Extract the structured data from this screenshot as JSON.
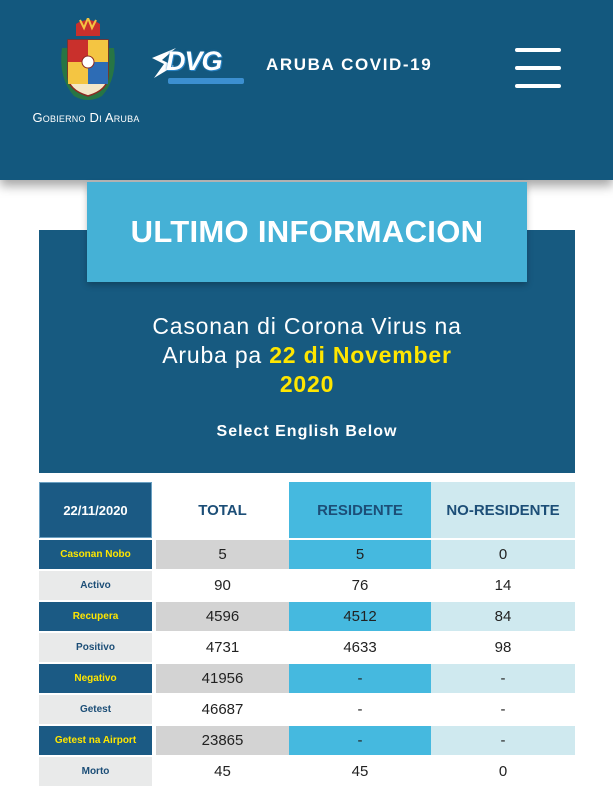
{
  "header": {
    "govt_logo_text": "Gobierno Di Aruba",
    "dvg_logo_text": "DVG",
    "title": "ARUBA COVID-19"
  },
  "info": {
    "banner": "ULTIMO INFORMACION",
    "subtitle_line1": "Casonan di Corona Virus na",
    "subtitle_line2_prefix": "Aruba pa ",
    "subtitle_date_1": "22 di November",
    "subtitle_date_2": "2020",
    "english_link": "Select English Below"
  },
  "table": {
    "date": "22/11/2020",
    "columns": [
      "TOTAL",
      "RESIDENTE",
      "NO-RESIDENTE"
    ],
    "rows": [
      {
        "label": "Casonan Nobo",
        "total": "5",
        "residente": "5",
        "no_residente": "0"
      },
      {
        "label": "Activo",
        "total": "90",
        "residente": "76",
        "no_residente": "14"
      },
      {
        "label": "Recupera",
        "total": "4596",
        "residente": "4512",
        "no_residente": "84"
      },
      {
        "label": "Positivo",
        "total": "4731",
        "residente": "4633",
        "no_residente": "98"
      },
      {
        "label": "Negativo",
        "total": "41956",
        "residente": "-",
        "no_residente": "-"
      },
      {
        "label": "Getest",
        "total": "46687",
        "residente": "-",
        "no_residente": "-"
      },
      {
        "label": "Getest na Airport",
        "total": "23865",
        "residente": "-",
        "no_residente": "-"
      },
      {
        "label": "Morto",
        "total": "45",
        "residente": "45",
        "no_residente": "0"
      }
    ]
  },
  "colors": {
    "header_bg": "#13587e",
    "banner_bg": "#45b1d6",
    "date_highlight": "#ffe600",
    "label_dark": "#1b5a84",
    "label_light": "#e9eaea",
    "label_text_dark": "#ffe600",
    "label_text_light": "#1c4e77",
    "total_dark": "#d3d3d3",
    "total_light": "#ffffff",
    "residente_dark": "#45b9df",
    "residente_light": "#ffffff",
    "noresidente_dark": "#cfe9ef",
    "noresidente_light": "#ffffff",
    "header_date_bg": "#1b5a84",
    "header_residente_bg": "#45b9df",
    "header_noresidente_bg": "#cfe9ef",
    "header_total_bg": "#ffffff"
  },
  "icons": {
    "crest": "aruba-crest-icon",
    "menu": "hamburger-menu-icon"
  }
}
